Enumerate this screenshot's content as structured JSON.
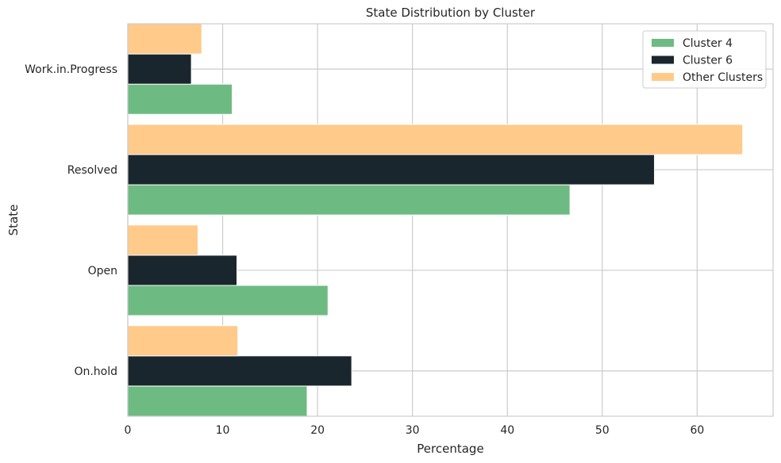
{
  "chart_data": {
    "type": "bar",
    "orientation": "horizontal",
    "title": "State Distribution by Cluster",
    "xlabel": "Percentage",
    "ylabel": "State",
    "categories": [
      "On.hold",
      "Open",
      "Resolved",
      "Work.in.Progress"
    ],
    "xlim": [
      0,
      68
    ],
    "xticks": [
      0,
      10,
      20,
      30,
      40,
      50,
      60
    ],
    "grid": true,
    "legend_position": "top-right",
    "series": [
      {
        "name": "Cluster 4",
        "color": "#6dbb82",
        "values": [
          18.9,
          21.1,
          46.6,
          11.0
        ]
      },
      {
        "name": "Cluster 6",
        "color": "#19262d",
        "values": [
          23.6,
          11.5,
          55.5,
          6.7
        ]
      },
      {
        "name": "Other Clusters",
        "color": "#ffca8a",
        "values": [
          11.6,
          7.4,
          64.8,
          7.8
        ]
      }
    ]
  }
}
